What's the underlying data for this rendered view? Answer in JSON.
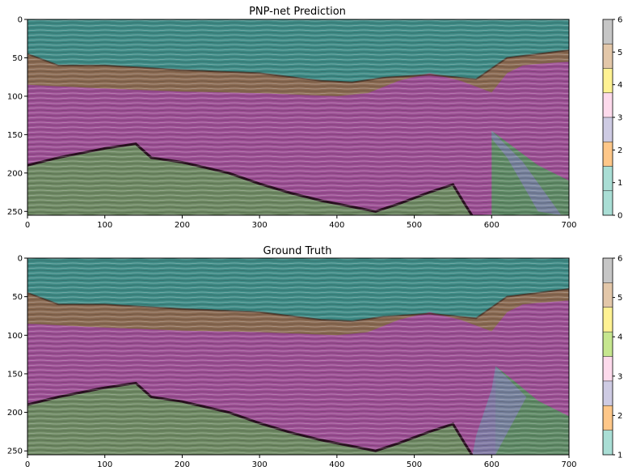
{
  "chart_data": [
    {
      "type": "heatmap",
      "title": "PNP-net Prediction",
      "xlabel": "",
      "ylabel": "",
      "xlim": [
        0,
        700
      ],
      "ylim": [
        255,
        0
      ],
      "x_ticks": [
        0,
        100,
        200,
        300,
        400,
        500,
        600,
        700
      ],
      "y_ticks": [
        0,
        50,
        100,
        150,
        200,
        250
      ],
      "boundaries": {
        "water_bottom": [
          [
            0,
            45
          ],
          [
            40,
            60
          ],
          [
            100,
            60
          ],
          [
            200,
            66
          ],
          [
            300,
            70
          ],
          [
            380,
            80
          ],
          [
            420,
            82
          ],
          [
            460,
            76
          ],
          [
            520,
            72
          ],
          [
            580,
            78
          ],
          [
            620,
            50
          ],
          [
            660,
            45
          ],
          [
            700,
            40
          ]
        ],
        "top_purple": [
          [
            0,
            85
          ],
          [
            100,
            90
          ],
          [
            200,
            94
          ],
          [
            300,
            96
          ],
          [
            400,
            100
          ],
          [
            440,
            96
          ],
          [
            480,
            80
          ],
          [
            520,
            70
          ],
          [
            560,
            80
          ],
          [
            600,
            95
          ],
          [
            620,
            70
          ],
          [
            640,
            60
          ],
          [
            660,
            58
          ],
          [
            700,
            55
          ]
        ],
        "top_green": [
          [
            0,
            190
          ],
          [
            40,
            180
          ],
          [
            100,
            168
          ],
          [
            140,
            162
          ],
          [
            160,
            180
          ],
          [
            200,
            186
          ],
          [
            260,
            200
          ],
          [
            300,
            214
          ],
          [
            340,
            226
          ],
          [
            380,
            236
          ],
          [
            420,
            244
          ],
          [
            450,
            250
          ],
          [
            480,
            240
          ],
          [
            520,
            225
          ],
          [
            550,
            215
          ],
          [
            565,
            240
          ],
          [
            575,
            256
          ]
        ],
        "fault_right_green": [
          [
            600,
            145
          ],
          [
            620,
            160
          ],
          [
            660,
            190
          ],
          [
            700,
            210
          ]
        ],
        "fault_blue": [
          [
            600,
            155
          ],
          [
            620,
            180
          ],
          [
            640,
            215
          ],
          [
            660,
            250
          ]
        ]
      },
      "colorbar": {
        "min": 0,
        "max": 6,
        "ticks": [
          "0",
          "1",
          "2",
          "3",
          "4",
          "5",
          "6"
        ],
        "colors": [
          "#8dd3c7",
          "#8dd3c7",
          "#fdb462",
          "#bebada",
          "#fccde5",
          "#ffed6f",
          "#d9b48c",
          "#b3b3b3"
        ]
      }
    },
    {
      "type": "heatmap",
      "title": "Ground Truth",
      "xlabel": "",
      "ylabel": "",
      "xlim": [
        0,
        700
      ],
      "ylim": [
        255,
        0
      ],
      "x_ticks": [
        0,
        100,
        200,
        300,
        400,
        500,
        600,
        700
      ],
      "y_ticks": [
        0,
        50,
        100,
        150,
        200,
        250
      ],
      "boundaries": {
        "water_bottom": [
          [
            0,
            45
          ],
          [
            40,
            60
          ],
          [
            100,
            60
          ],
          [
            200,
            66
          ],
          [
            300,
            70
          ],
          [
            380,
            80
          ],
          [
            420,
            82
          ],
          [
            460,
            76
          ],
          [
            520,
            72
          ],
          [
            580,
            78
          ],
          [
            620,
            50
          ],
          [
            660,
            45
          ],
          [
            700,
            40
          ]
        ],
        "top_purple": [
          [
            0,
            85
          ],
          [
            100,
            90
          ],
          [
            200,
            94
          ],
          [
            300,
            96
          ],
          [
            400,
            100
          ],
          [
            440,
            96
          ],
          [
            480,
            80
          ],
          [
            520,
            70
          ],
          [
            560,
            80
          ],
          [
            600,
            95
          ],
          [
            620,
            70
          ],
          [
            640,
            60
          ],
          [
            660,
            58
          ],
          [
            700,
            55
          ]
        ],
        "top_green": [
          [
            0,
            190
          ],
          [
            40,
            180
          ],
          [
            100,
            168
          ],
          [
            140,
            162
          ],
          [
            160,
            180
          ],
          [
            200,
            186
          ],
          [
            260,
            200
          ],
          [
            300,
            214
          ],
          [
            340,
            226
          ],
          [
            380,
            236
          ],
          [
            420,
            244
          ],
          [
            450,
            250
          ],
          [
            480,
            240
          ],
          [
            520,
            225
          ],
          [
            550,
            215
          ],
          [
            565,
            240
          ],
          [
            575,
            256
          ]
        ],
        "fault_right_green": [
          [
            605,
            140
          ],
          [
            630,
            160
          ],
          [
            660,
            185
          ],
          [
            700,
            205
          ]
        ],
        "fault_blue": [
          [
            600,
            170
          ],
          [
            590,
            200
          ],
          [
            580,
            230
          ],
          [
            575,
            256
          ]
        ]
      },
      "colorbar": {
        "min": 1,
        "max": 6,
        "ticks": [
          "1",
          "2",
          "3",
          "4",
          "5",
          "6"
        ],
        "colors": [
          "#8dd3c7",
          "#fdb462",
          "#bebada",
          "#fccde5",
          "#b3de69",
          "#ffed6f",
          "#d9b48c",
          "#b3b3b3"
        ]
      }
    }
  ]
}
